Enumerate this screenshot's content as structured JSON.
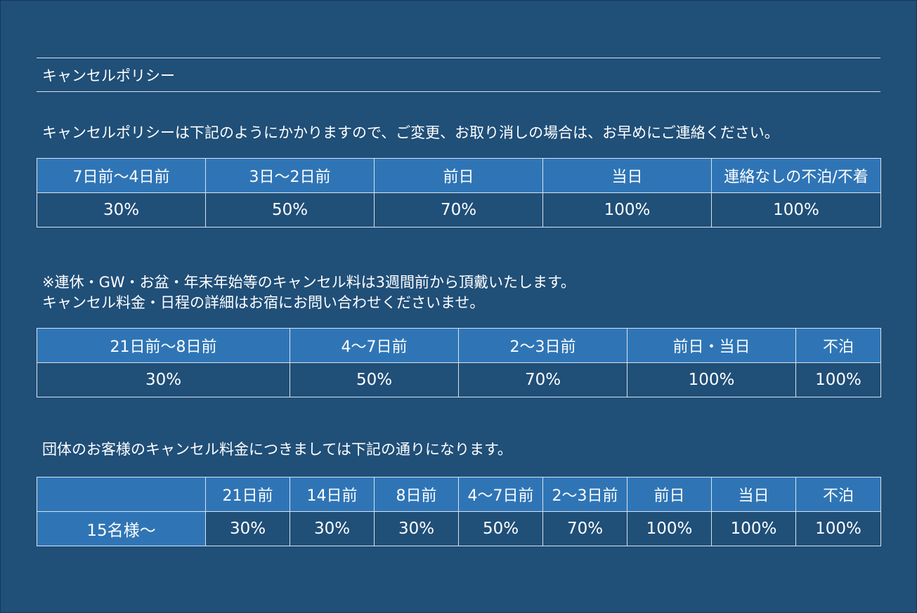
{
  "section_title": "キャンセルポリシー",
  "intro_text": "キャンセルポリシーは下記のようにかかりますので、ご変更、お取り消しの場合は、お早めにご連絡ください。",
  "table1": {
    "headers": [
      "7日前〜4日前",
      "3日〜2日前",
      "前日",
      "当日",
      "連絡なしの不泊/不着"
    ],
    "values": [
      "30%",
      "50%",
      "70%",
      "100%",
      "100%"
    ]
  },
  "holiday_note": {
    "line1": "※連休・GW・お盆・年末年始等のキャンセル料は3週間前から頂戴いたします。",
    "line2": "キャンセル料金・日程の詳細はお宿にお問い合わせくださいませ。"
  },
  "table2": {
    "headers": [
      "21日前〜8日前",
      "4〜7日前",
      "2〜3日前",
      "前日・当日",
      "不泊"
    ],
    "values": [
      "30%",
      "50%",
      "70%",
      "100%",
      "100%"
    ]
  },
  "group_note": "団体のお客様のキャンセル料金につきましては下記の通りになります。",
  "table3": {
    "corner": "",
    "headers": [
      "21日前",
      "14日前",
      "8日前",
      "4〜7日前",
      "2〜3日前",
      "前日",
      "当日",
      "不泊"
    ],
    "row_label": "15名様〜",
    "values": [
      "30%",
      "30%",
      "30%",
      "50%",
      "70%",
      "100%",
      "100%",
      "100%"
    ]
  },
  "colors": {
    "background": "#204f78",
    "header_cell": "#2f75b6",
    "border": "#d7e3ee",
    "text": "#ffffff"
  }
}
